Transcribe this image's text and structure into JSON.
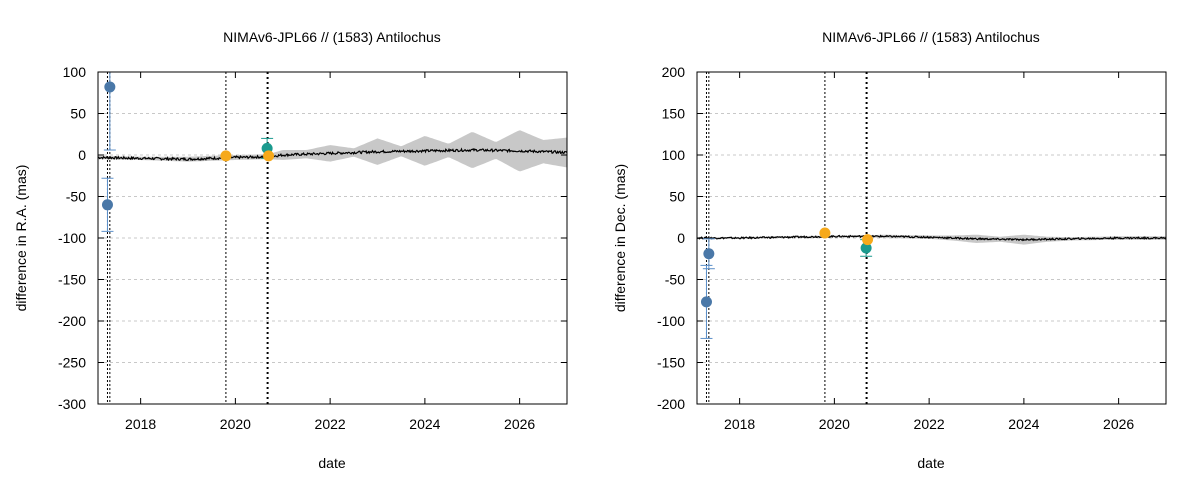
{
  "chart_data": [
    {
      "type": "scatter",
      "title": "NIMAv6-JPL66 // (1583) Antilochus",
      "xlabel": "date",
      "ylabel": "difference in R.A. (mas)",
      "xlim": [
        2017.1,
        2027.0
      ],
      "ylim": [
        -300,
        100
      ],
      "xticks": [
        2018,
        2020,
        2022,
        2024,
        2026
      ],
      "yticks": [
        -300,
        -250,
        -200,
        -150,
        -100,
        -50,
        0,
        50,
        100
      ],
      "grid": "horizontal dashed",
      "colors": {
        "blue": "#4a78a8",
        "teal": "#1a9a8e",
        "orange": "#f6a91b",
        "band": "#c8c8c8",
        "line": "#000000"
      },
      "vlines": [
        {
          "x": 2017.3,
          "style": "dotted"
        },
        {
          "x": 2017.35,
          "style": "dotted"
        },
        {
          "x": 2019.8,
          "style": "dotted"
        },
        {
          "x": 2020.68,
          "style": "dotted-thick"
        }
      ],
      "series": [
        {
          "color": "blue",
          "points": [
            {
              "x": 2017.35,
              "y": 82,
              "err": 76
            },
            {
              "x": 2017.3,
              "y": -60,
              "err": 32
            }
          ]
        },
        {
          "color": "teal",
          "points": [
            {
              "x": 2020.67,
              "y": 8,
              "err": 12
            }
          ]
        },
        {
          "color": "orange",
          "points": [
            {
              "x": 2019.8,
              "y": -1,
              "err": 0
            },
            {
              "x": 2020.7,
              "y": -1,
              "err": 0
            }
          ]
        }
      ],
      "residual_line": {
        "x": [
          2017.1,
          2018,
          2019,
          2020,
          2020.7,
          2021,
          2022,
          2023,
          2024,
          2025,
          2026,
          2027
        ],
        "y": [
          -3,
          -4,
          -5,
          -3,
          -2,
          0,
          2,
          4,
          5,
          6,
          5,
          3
        ]
      },
      "uncertainty_band": {
        "x": [
          2017.1,
          2018,
          2019,
          2020,
          2020.7,
          2021,
          2021.5,
          2022,
          2022.5,
          2023,
          2023.5,
          2024,
          2024.5,
          2025,
          2025.5,
          2026,
          2026.5,
          2027
        ],
        "half_width": [
          2,
          2,
          3,
          3,
          3,
          6,
          5,
          10,
          5,
          16,
          6,
          18,
          8,
          22,
          10,
          25,
          14,
          18
        ]
      }
    },
    {
      "type": "scatter",
      "title": "NIMAv6-JPL66 // (1583) Antilochus",
      "xlabel": "date",
      "ylabel": "difference in Dec. (mas)",
      "xlim": [
        2017.1,
        2027.0
      ],
      "ylim": [
        -200,
        200
      ],
      "xticks": [
        2018,
        2020,
        2022,
        2024,
        2026
      ],
      "yticks": [
        -200,
        -150,
        -100,
        -50,
        0,
        50,
        100,
        150,
        200
      ],
      "grid": "horizontal dashed",
      "colors": {
        "blue": "#4a78a8",
        "teal": "#1a9a8e",
        "orange": "#f6a91b",
        "band": "#c8c8c8",
        "line": "#000000"
      },
      "vlines": [
        {
          "x": 2017.3,
          "style": "dotted"
        },
        {
          "x": 2017.35,
          "style": "dotted"
        },
        {
          "x": 2019.8,
          "style": "dotted"
        },
        {
          "x": 2020.68,
          "style": "dotted-thick"
        }
      ],
      "series": [
        {
          "color": "blue",
          "points": [
            {
              "x": 2017.35,
              "y": -19,
              "err": 18
            },
            {
              "x": 2017.3,
              "y": -77,
              "err": 44
            }
          ]
        },
        {
          "color": "teal",
          "points": [
            {
              "x": 2020.67,
              "y": -12,
              "err": 10
            }
          ]
        },
        {
          "color": "orange",
          "points": [
            {
              "x": 2019.8,
              "y": 6,
              "err": 0
            },
            {
              "x": 2020.7,
              "y": -2,
              "err": 0
            }
          ]
        }
      ],
      "residual_line": {
        "x": [
          2017.1,
          2018,
          2019,
          2020,
          2020.7,
          2021,
          2022,
          2023,
          2024,
          2025,
          2026,
          2027
        ],
        "y": [
          0,
          0,
          1,
          2,
          2,
          2,
          1,
          -1,
          -2,
          -1,
          0,
          0
        ]
      },
      "uncertainty_band": {
        "x": [
          2017.1,
          2018,
          2019,
          2020,
          2020.7,
          2021,
          2022,
          2022.5,
          2023,
          2023.5,
          2024,
          2024.5,
          2025,
          2026,
          2027
        ],
        "half_width": [
          1,
          1,
          1,
          1,
          1,
          2,
          2,
          3,
          5,
          3,
          6,
          3,
          2,
          2,
          2
        ]
      }
    }
  ]
}
